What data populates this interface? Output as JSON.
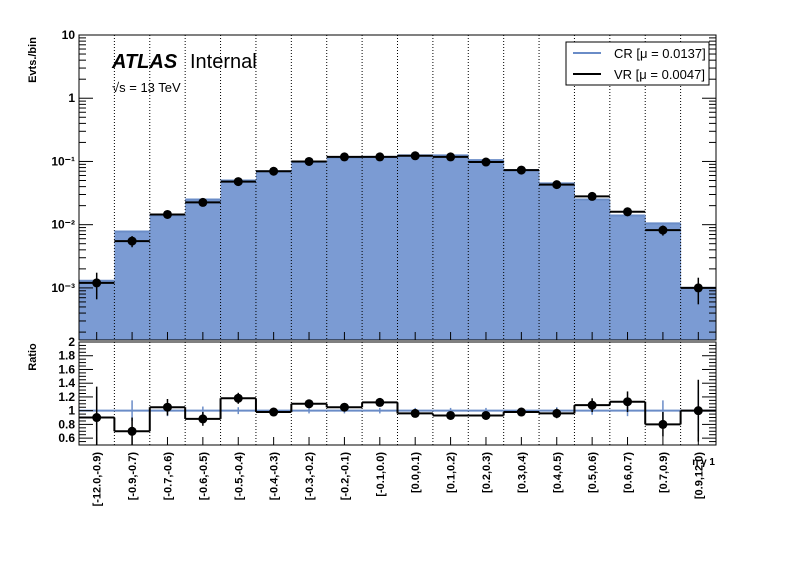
{
  "chart_data": {
    "type": "bar",
    "label": {
      "experiment": "ATLAS",
      "status": "Internal",
      "energy": "√s = 13 TeV"
    },
    "ylabel": "Evts./bin",
    "ratio_ylabel": "Ratio",
    "xlabel": "η γ 1",
    "yscale": "log",
    "ylim": [
      0.00015,
      10
    ],
    "yticks": [
      {
        "value": 10,
        "label": "10"
      },
      {
        "value": 1,
        "label": "1"
      },
      {
        "value": 0.1,
        "label": "10⁻¹"
      },
      {
        "value": 0.01,
        "label": "10⁻²"
      },
      {
        "value": 0.001,
        "label": "10⁻³"
      }
    ],
    "ratio_ylim": [
      0.5,
      2.0
    ],
    "ratio_yticks": [
      {
        "value": 2,
        "label": "2"
      },
      {
        "value": 1.8,
        "label": "1.8"
      },
      {
        "value": 1.6,
        "label": "1.6"
      },
      {
        "value": 1.4,
        "label": "1.4"
      },
      {
        "value": 1.2,
        "label": "1.2"
      },
      {
        "value": 1,
        "label": "1"
      },
      {
        "value": 0.8,
        "label": "0.8"
      },
      {
        "value": 0.6,
        "label": "0.6"
      }
    ],
    "grid": "vertical-dotted",
    "legend_position": "top-right",
    "categories": [
      "[-12.0,-0.9)",
      "[-0.9,-0.7)",
      "[-0.7,-0.6)",
      "[-0.6,-0.5)",
      "[-0.5,-0.4)",
      "[-0.4,-0.3)",
      "[-0.3,-0.2)",
      "[-0.2,-0.1)",
      "[-0.1,0.0)",
      "[0.0,0.1)",
      "[0.1,0.2)",
      "[0.2,0.3)",
      "[0.3,0.4)",
      "[0.4,0.5)",
      "[0.5,0.6)",
      "[0.6,0.7)",
      "[0.7,0.9)",
      "[0.9,12.0)"
    ],
    "series": [
      {
        "name": "CR [μ = 0.0137]",
        "color": "#7b9bd3",
        "line_color": "#6a8cc7",
        "values": [
          0.0013,
          0.0078,
          0.014,
          0.025,
          0.05,
          0.07,
          0.098,
          0.115,
          0.118,
          0.125,
          0.125,
          0.105,
          0.073,
          0.045,
          0.025,
          0.014,
          0.0105,
          0.001
        ],
        "ratio_err": [
          0.3,
          0.15,
          0.08,
          0.06,
          0.05,
          0.04,
          0.04,
          0.04,
          0.04,
          0.04,
          0.04,
          0.04,
          0.04,
          0.05,
          0.06,
          0.08,
          0.15,
          0.3
        ]
      },
      {
        "name": "VR [μ = 0.0047]",
        "color": "#000000",
        "values": [
          0.0012,
          0.0055,
          0.0145,
          0.0225,
          0.048,
          0.07,
          0.1,
          0.118,
          0.118,
          0.123,
          0.118,
          0.098,
          0.073,
          0.043,
          0.028,
          0.016,
          0.0082,
          0.001
        ],
        "ratio": [
          0.9,
          0.7,
          1.05,
          0.88,
          1.18,
          0.98,
          1.1,
          1.05,
          1.12,
          0.96,
          0.93,
          0.93,
          0.98,
          0.96,
          1.08,
          1.13,
          0.8,
          1.0
        ],
        "ratio_err": [
          0.45,
          0.2,
          0.12,
          0.1,
          0.08,
          0.06,
          0.06,
          0.05,
          0.05,
          0.05,
          0.05,
          0.05,
          0.06,
          0.07,
          0.1,
          0.15,
          0.18,
          0.45
        ]
      }
    ]
  }
}
